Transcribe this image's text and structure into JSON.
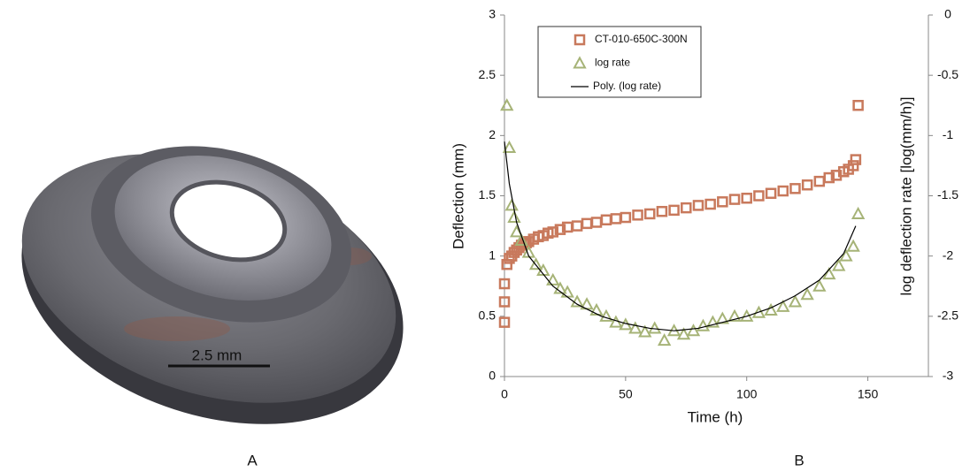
{
  "panel_a": {
    "scale_bar": "2.5 mm",
    "label": "A"
  },
  "panel_b": {
    "label": "B"
  },
  "chart_data": {
    "type": "scatter",
    "x_label": "Time (h)",
    "y_label": "Deflection (mm)",
    "y2_label": "log deflection rate [log(mm/h)]",
    "xlim": [
      0,
      175
    ],
    "xticks": [
      0,
      50,
      100,
      150
    ],
    "ylim": [
      0,
      3
    ],
    "yticks": [
      0,
      0.5,
      1,
      1.5,
      2,
      2.5,
      3
    ],
    "y2lim": [
      -3,
      0
    ],
    "y2ticks": [
      -3,
      -2.5,
      -2,
      -1.5,
      -1,
      -0.5,
      0
    ],
    "grid": false,
    "legend": "upper left",
    "series": [
      {
        "name": "CT-010-650C-300N",
        "color": "#c8795c",
        "marker": "square",
        "axis": "y",
        "x": [
          0,
          0,
          0,
          1,
          2,
          3,
          4,
          5,
          6,
          7,
          8,
          9,
          10,
          12,
          14,
          16,
          18,
          20,
          23,
          26,
          30,
          34,
          38,
          42,
          46,
          50,
          55,
          60,
          65,
          70,
          75,
          80,
          85,
          90,
          95,
          100,
          105,
          110,
          115,
          120,
          125,
          130,
          134,
          137,
          140,
          142,
          144,
          145,
          146
        ],
        "values": [
          0.45,
          0.62,
          0.77,
          0.93,
          0.98,
          1.0,
          1.03,
          1.05,
          1.07,
          1.09,
          1.1,
          1.11,
          1.12,
          1.14,
          1.16,
          1.17,
          1.19,
          1.2,
          1.22,
          1.24,
          1.25,
          1.27,
          1.28,
          1.3,
          1.31,
          1.32,
          1.34,
          1.35,
          1.37,
          1.38,
          1.4,
          1.42,
          1.43,
          1.45,
          1.47,
          1.48,
          1.5,
          1.52,
          1.54,
          1.56,
          1.59,
          1.62,
          1.65,
          1.67,
          1.7,
          1.72,
          1.75,
          1.8,
          2.25
        ]
      },
      {
        "name": "log rate",
        "color": "#a6b377",
        "marker": "triangle",
        "axis": "y2",
        "x": [
          1,
          2,
          3,
          4,
          5,
          7,
          10,
          13,
          16,
          20,
          23,
          26,
          30,
          34,
          38,
          42,
          46,
          50,
          54,
          58,
          62,
          66,
          70,
          74,
          78,
          82,
          86,
          90,
          95,
          100,
          105,
          110,
          115,
          120,
          125,
          130,
          134,
          138,
          141,
          144,
          146
        ],
        "values": [
          -0.75,
          -1.1,
          -1.58,
          -1.68,
          -1.8,
          -1.87,
          -1.97,
          -2.07,
          -2.12,
          -2.2,
          -2.27,
          -2.3,
          -2.38,
          -2.4,
          -2.45,
          -2.5,
          -2.55,
          -2.57,
          -2.6,
          -2.63,
          -2.6,
          -2.7,
          -2.62,
          -2.65,
          -2.62,
          -2.58,
          -2.55,
          -2.52,
          -2.5,
          -2.5,
          -2.47,
          -2.45,
          -2.42,
          -2.38,
          -2.32,
          -2.25,
          -2.15,
          -2.08,
          -2.0,
          -1.92,
          -1.65
        ]
      },
      {
        "name": "Poly. (log rate)",
        "color": "#000000",
        "marker": "line",
        "axis": "y2",
        "x": [
          0,
          2,
          5,
          10,
          20,
          30,
          40,
          50,
          60,
          70,
          80,
          90,
          100,
          110,
          120,
          130,
          140,
          145
        ],
        "values": [
          -1.05,
          -1.4,
          -1.72,
          -2.0,
          -2.25,
          -2.4,
          -2.5,
          -2.56,
          -2.6,
          -2.62,
          -2.6,
          -2.55,
          -2.5,
          -2.43,
          -2.33,
          -2.2,
          -1.98,
          -1.75
        ]
      }
    ]
  }
}
